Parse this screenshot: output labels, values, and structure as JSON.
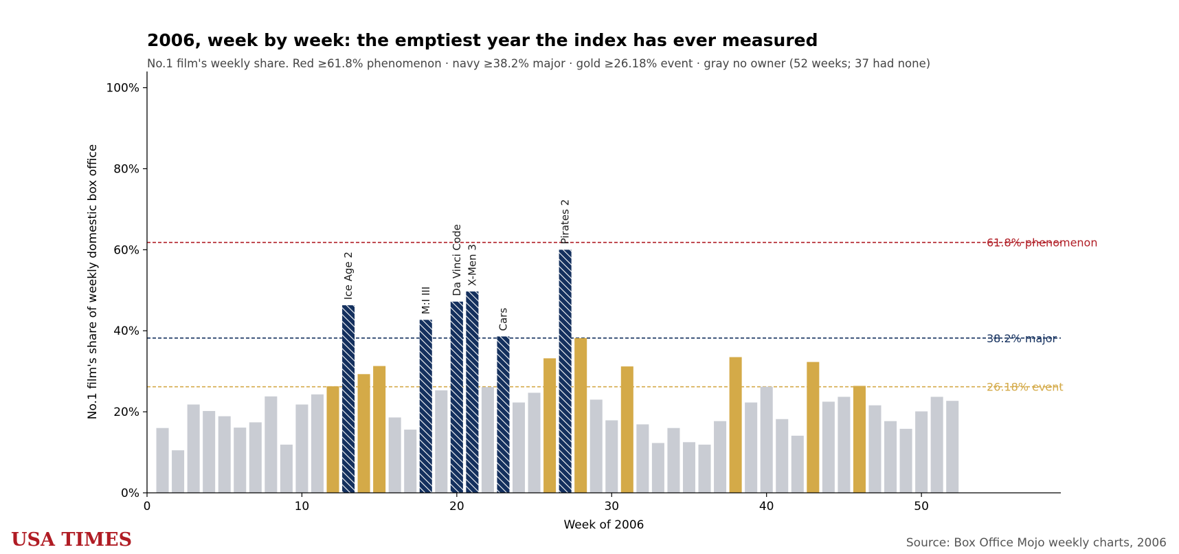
{
  "chart_data": {
    "type": "bar",
    "title": "2006, week by week: the emptiest year the index has ever measured",
    "subtitle": "No.1 film's weekly share. Red ≥61.8% phenomenon · navy ≥38.2% major · gold ≥26.18% event · gray no owner (52 weeks; 37 had none)",
    "xlabel": "Week of 2006",
    "ylabel": "No.1 film's share of weekly domestic box office",
    "xlim": [
      0,
      59
    ],
    "ylim": [
      0,
      104
    ],
    "xticks": [
      0,
      10,
      20,
      30,
      40,
      50
    ],
    "yticks": [
      0,
      20,
      40,
      60,
      80,
      100
    ],
    "ytick_suffix": "%",
    "grid": false,
    "weeks": [
      1,
      2,
      3,
      4,
      5,
      6,
      7,
      8,
      9,
      10,
      11,
      12,
      13,
      14,
      15,
      16,
      17,
      18,
      19,
      20,
      21,
      22,
      23,
      24,
      25,
      26,
      27,
      28,
      29,
      30,
      31,
      32,
      33,
      34,
      35,
      36,
      37,
      38,
      39,
      40,
      41,
      42,
      43,
      44,
      45,
      46,
      47,
      48,
      49,
      50,
      51,
      52
    ],
    "values": [
      16.0,
      10.5,
      21.8,
      20.2,
      18.9,
      16.1,
      17.4,
      23.8,
      11.9,
      21.8,
      24.3,
      26.3,
      46.3,
      29.3,
      31.3,
      18.6,
      15.6,
      42.7,
      25.3,
      47.2,
      49.7,
      26.1,
      38.6,
      22.3,
      24.7,
      33.2,
      60.0,
      38.2,
      23.0,
      17.9,
      31.2,
      16.9,
      12.3,
      16.0,
      12.5,
      11.9,
      17.7,
      33.5,
      22.3,
      26.2,
      18.2,
      14.1,
      32.3,
      22.5,
      23.7,
      26.4,
      21.6,
      17.7,
      15.8,
      20.1,
      23.7,
      22.7
    ],
    "categories": [
      "gray",
      "gray",
      "gray",
      "gray",
      "gray",
      "gray",
      "gray",
      "gray",
      "gray",
      "gray",
      "gray",
      "gold",
      "navy",
      "gold",
      "gold",
      "gray",
      "gray",
      "navy",
      "gray",
      "navy",
      "navy",
      "gray",
      "navy",
      "gray",
      "gray",
      "gold",
      "navy",
      "gold",
      "gray",
      "gray",
      "gold",
      "gray",
      "gray",
      "gray",
      "gray",
      "gray",
      "gray",
      "gold",
      "gray",
      "gray",
      "gray",
      "gray",
      "gold",
      "gray",
      "gray",
      "gold",
      "gray",
      "gray",
      "gray",
      "gray",
      "gray",
      "gray"
    ],
    "category_colors": {
      "gray": "#c9ccd3",
      "gold": "#d4aa48",
      "navy": "#14305e"
    },
    "bar_labels": [
      {
        "week": 13,
        "text": "Ice Age 2"
      },
      {
        "week": 18,
        "text": "M:I III"
      },
      {
        "week": 20,
        "text": "Da Vinci Code"
      },
      {
        "week": 21,
        "text": "X-Men 3"
      },
      {
        "week": 23,
        "text": "Cars"
      },
      {
        "week": 27,
        "text": "Pirates 2"
      }
    ],
    "thresholds": [
      {
        "value": 61.8,
        "label": "61.8% phenomenon",
        "color": "#b01c24"
      },
      {
        "value": 38.2,
        "label": "38.2% major",
        "color": "#14305e"
      },
      {
        "value": 26.18,
        "label": "26.18% event",
        "color": "#d4aa48"
      }
    ]
  },
  "brand": "USA TIMES",
  "source": "Source: Box Office Mojo weekly charts, 2006"
}
